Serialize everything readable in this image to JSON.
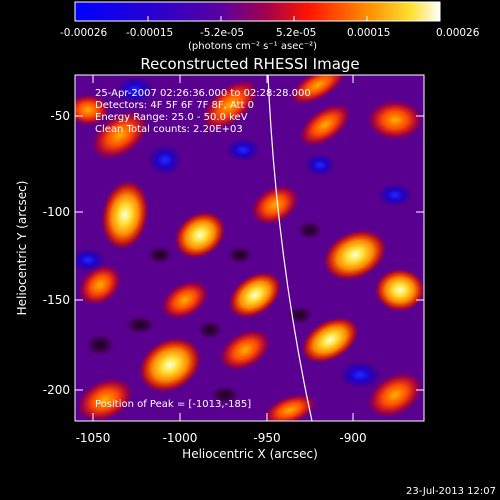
{
  "colorbar": {
    "ticks": [
      "-0.00026",
      "-0.00015",
      "-5.2e-05",
      "5.2e-05",
      "0.00015",
      "0.00026"
    ],
    "unit_label": "(photons cm⁻² s⁻¹ asec⁻²)"
  },
  "image": {
    "title": "Reconstructed RHESSI Image",
    "info_lines": [
      "25-Apr-2007 02:26:36.000 to 02:28:28.000",
      "Detectors: 4F 5F 6F 7F 8F, Att 0",
      "Energy Range: 25.0 - 50.0 keV",
      "Clean     Total counts: 2.20E+03"
    ],
    "peak_text": "Position of Peak = [-1013,-185]",
    "x_axis": {
      "label": "Heliocentric X (arcsec)",
      "ticks": [
        "-1050",
        "-1000",
        "-950",
        "-900"
      ]
    },
    "y_axis": {
      "label": "Heliocentric Y (arcsec)",
      "ticks": [
        "-50",
        "-100",
        "-150",
        "-200"
      ]
    }
  },
  "footer": {
    "timestamp": "23-Jul-2013 12:07"
  }
}
